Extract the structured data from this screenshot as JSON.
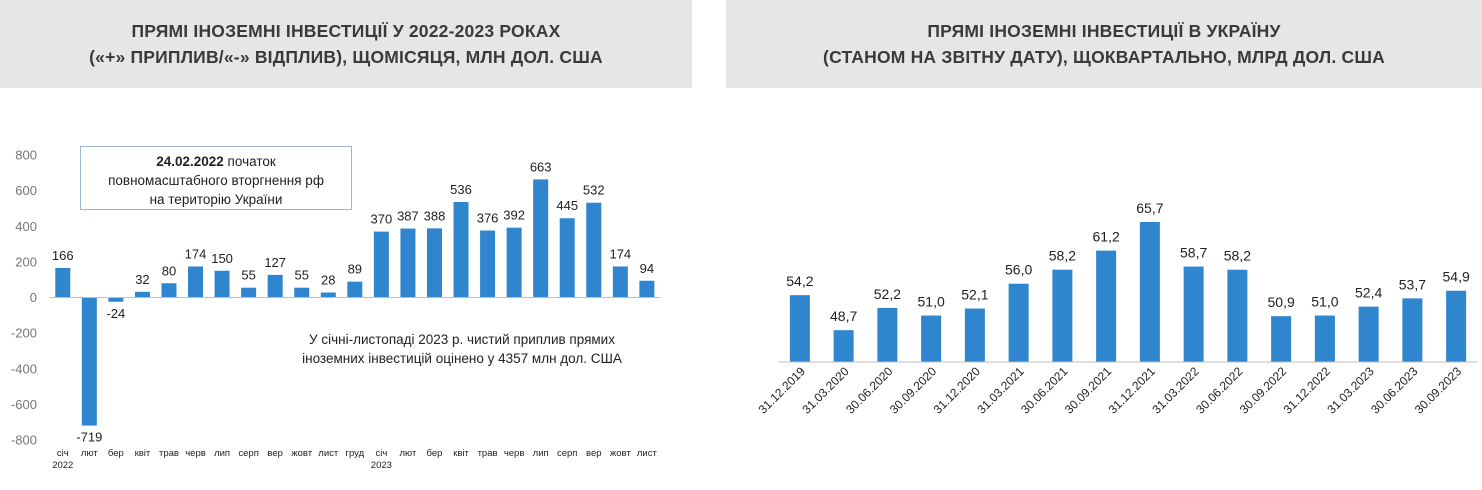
{
  "left_panel": {
    "title_line1": "ПРЯМІ ІНОЗЕМНІ ІНВЕСТИЦІЇ У 2022-2023 РОКАХ",
    "title_line2": "(«+» ПРИПЛИВ/«-» ВІДПЛИВ), ЩОМІСЯЦЯ, МЛН ДОЛ. США",
    "annotation_box": {
      "bold": "24.02.2022",
      "line1_rest": " початок",
      "line2": "повномасштабного вторгнення рф",
      "line3": "на територію України"
    },
    "note_line1": "У січні-листопаді 2023 р. чистий приплив прямих",
    "note_line2": "іноземних інвестицій оцінено у 4357 млн дол. США"
  },
  "right_panel": {
    "title_line1": "ПРЯМІ ІНОЗЕМНІ ІНВЕСТИЦІЇ В УКРАЇНУ",
    "title_line2": "(СТАНОМ НА ЗВІТНУ ДАТУ), ЩОКВАРТАЛЬНО, МЛРД ДОЛ. США"
  },
  "colors": {
    "bar": "#2f86cf",
    "axis": "#bfbfbf",
    "header_bg": "#e6e6e6"
  },
  "chart_data": [
    {
      "type": "bar",
      "title": "ПРЯМІ ІНОЗЕМНІ ІНВЕСТИЦІЇ У 2022-2023 РОКАХ («+» ПРИПЛИВ/«-» ВІДПЛИВ), ЩОМІСЯЦЯ, МЛН ДОЛ. США",
      "categories": [
        "січ",
        "лют",
        "бер",
        "квіт",
        "трав",
        "черв",
        "лип",
        "серп",
        "вер",
        "жовт",
        "лист",
        "груд",
        "січ",
        "лют",
        "бер",
        "квіт",
        "трав",
        "черв",
        "лип",
        "серп",
        "вер",
        "жовт",
        "лист"
      ],
      "year_labels": [
        {
          "index": 0,
          "text": "2022"
        },
        {
          "index": 12,
          "text": "2023"
        }
      ],
      "values": [
        166,
        -719,
        -24,
        32,
        80,
        174,
        150,
        55,
        127,
        55,
        28,
        89,
        370,
        387,
        388,
        536,
        376,
        392,
        663,
        445,
        532,
        174,
        94
      ],
      "value_labels": [
        "166",
        "-719",
        "-24",
        "32",
        "80",
        "174",
        "150",
        "55",
        "127",
        "55",
        "28",
        "89",
        "370",
        "387",
        "388",
        "536",
        "376",
        "392",
        "663",
        "445",
        "532",
        "174",
        "94"
      ],
      "y_ticks": [
        800,
        600,
        400,
        200,
        0,
        -200,
        -400,
        -600,
        -800
      ],
      "ylim": [
        -800,
        800
      ],
      "grid": false
    },
    {
      "type": "bar",
      "title": "ПРЯМІ ІНОЗЕМНІ ІНВЕСТИЦІЇ В УКРАЇНУ (СТАНОМ НА ЗВІТНУ ДАТУ), ЩОКВАРТАЛЬНО, МЛРД ДОЛ. США",
      "categories": [
        "31.12.2019",
        "31.03.2020",
        "30.06.2020",
        "30.09.2020",
        "31.12.2020",
        "31.03.2021",
        "30.06.2021",
        "30.09.2021",
        "31.12.2021",
        "31.03.2022",
        "30.06.2022",
        "30.09.2022",
        "31.12.2022",
        "31.03.2023",
        "30.06.2023",
        "30.09.2023"
      ],
      "values": [
        54.2,
        48.7,
        52.2,
        51.0,
        52.1,
        56.0,
        58.2,
        61.2,
        65.7,
        58.7,
        58.2,
        50.9,
        51.0,
        52.4,
        53.7,
        54.9
      ],
      "value_labels": [
        "54,2",
        "48,7",
        "52,2",
        "51,0",
        "52,1",
        "56,0",
        "58,2",
        "61,2",
        "65,7",
        "58,7",
        "58,2",
        "50,9",
        "51,0",
        "52,4",
        "53,7",
        "54,9"
      ],
      "grid": false
    }
  ]
}
